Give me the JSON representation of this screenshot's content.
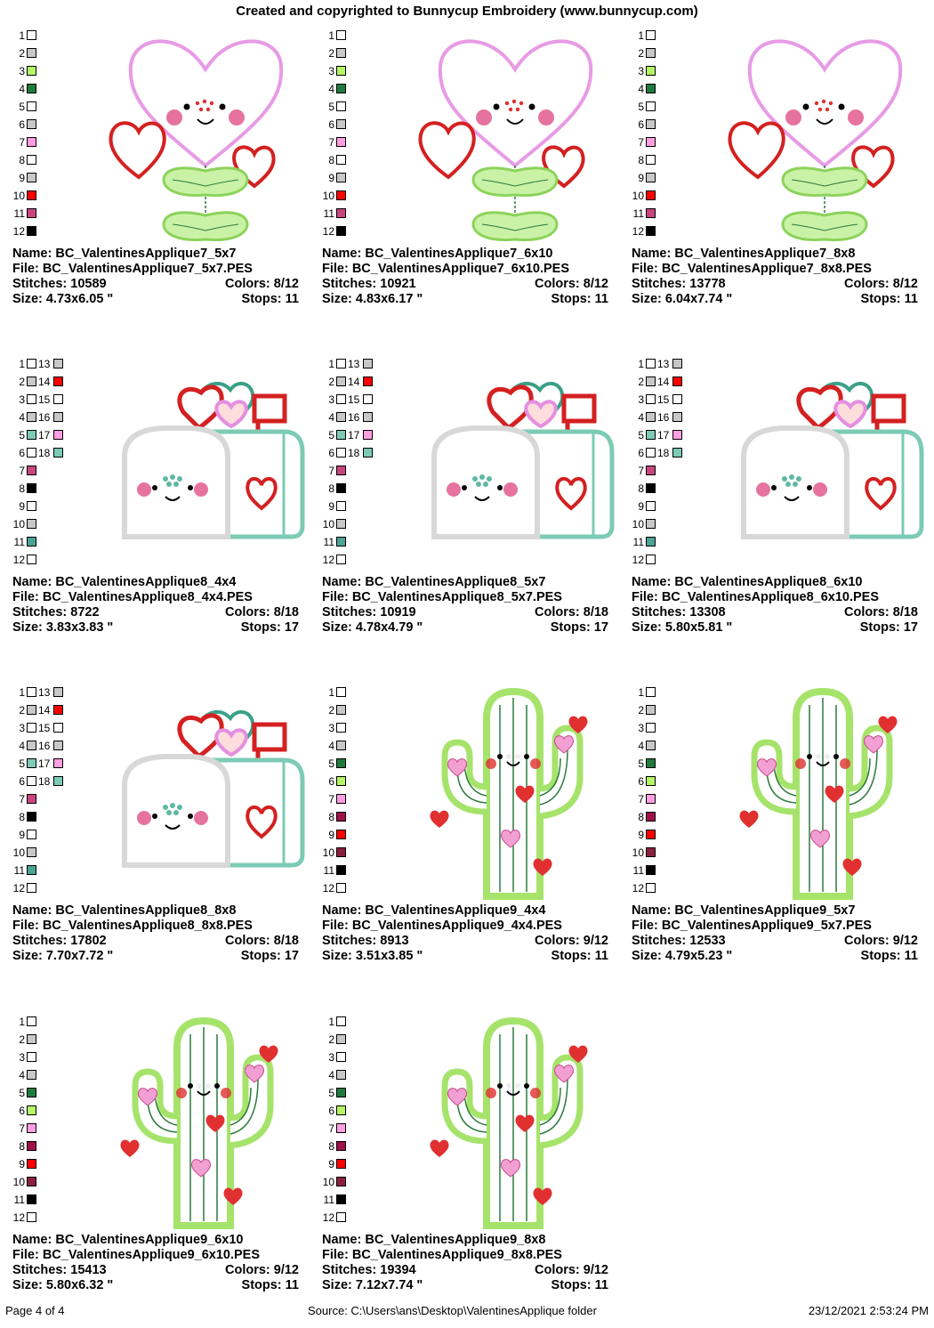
{
  "header": "Created and copyrighted to Bunnycup Embroidery (www.bunnycup.com)",
  "labels": {
    "name": "Name:",
    "file": "File:",
    "stitches": "Stitches:",
    "colors": "Colors:",
    "size": "Size:",
    "stops": "Stops:"
  },
  "palettes": {
    "heart": [
      "#ffffff",
      "#c8c8c8",
      "#b5f566",
      "#1e7a3e",
      "#ffffff",
      "#c8c8c8",
      "#ff9ee0",
      "#ffffff",
      "#c8c8c8",
      "#ff0000",
      "#c8457f",
      "#000000"
    ],
    "mailbox": [
      "#ffffff",
      "#c8c8c8",
      "#ffffff",
      "#c8c8c8",
      "#7ccbb4",
      "#ffffff",
      "#c8457f",
      "#000000",
      "#ffffff",
      "#c8c8c8",
      "#4aa394",
      "#ffffff"
    ],
    "mailbox2": [
      "#c8c8c8",
      "#ff0000",
      "#ffffff",
      "#c8c8c8",
      "#ff9ee0",
      "#7ccbb4"
    ],
    "cactus": [
      "#ffffff",
      "#c8c8c8",
      "#ffffff",
      "#c8c8c8",
      "#1e7a3e",
      "#b5f566",
      "#ff9ee0",
      "#a0104a",
      "#ff0000",
      "#8a2040",
      "#000000",
      "#ffffff"
    ]
  },
  "designs": [
    {
      "motif": "heart",
      "name": "BC_ValentinesApplique7_5x7",
      "file": "BC_ValentinesApplique7_5x7.PES",
      "stitches": "10589",
      "colors": "8/12",
      "size": "4.73x6.05 \"",
      "stops": "11"
    },
    {
      "motif": "heart",
      "name": "BC_ValentinesApplique7_6x10",
      "file": "BC_ValentinesApplique7_6x10.PES",
      "stitches": "10921",
      "colors": "8/12",
      "size": "4.83x6.17 \"",
      "stops": "11"
    },
    {
      "motif": "heart",
      "name": "BC_ValentinesApplique7_8x8",
      "file": "BC_ValentinesApplique7_8x8.PES",
      "stitches": "13778",
      "colors": "8/12",
      "size": "6.04x7.74 \"",
      "stops": "11"
    },
    {
      "motif": "mailbox",
      "name": "BC_ValentinesApplique8_4x4",
      "file": "BC_ValentinesApplique8_4x4.PES",
      "stitches": "8722",
      "colors": "8/18",
      "size": "3.83x3.83 \"",
      "stops": "17"
    },
    {
      "motif": "mailbox",
      "name": "BC_ValentinesApplique8_5x7",
      "file": "BC_ValentinesApplique8_5x7.PES",
      "stitches": "10919",
      "colors": "8/18",
      "size": "4.78x4.79 \"",
      "stops": "17"
    },
    {
      "motif": "mailbox",
      "name": "BC_ValentinesApplique8_6x10",
      "file": "BC_ValentinesApplique8_6x10.PES",
      "stitches": "13308",
      "colors": "8/18",
      "size": "5.80x5.81 \"",
      "stops": "17"
    },
    {
      "motif": "mailbox",
      "name": "BC_ValentinesApplique8_8x8",
      "file": "BC_ValentinesApplique8_8x8.PES",
      "stitches": "17802",
      "colors": "8/18",
      "size": "7.70x7.72 \"",
      "stops": "17"
    },
    {
      "motif": "cactus",
      "name": "BC_ValentinesApplique9_4x4",
      "file": "BC_ValentinesApplique9_4x4.PES",
      "stitches": "8913",
      "colors": "9/12",
      "size": "3.51x3.85 \"",
      "stops": "11"
    },
    {
      "motif": "cactus",
      "name": "BC_ValentinesApplique9_5x7",
      "file": "BC_ValentinesApplique9_5x7.PES",
      "stitches": "12533",
      "colors": "9/12",
      "size": "4.79x5.23 \"",
      "stops": "11"
    },
    {
      "motif": "cactus",
      "name": "BC_ValentinesApplique9_6x10",
      "file": "BC_ValentinesApplique9_6x10.PES",
      "stitches": "15413",
      "colors": "9/12",
      "size": "5.80x6.32 \"",
      "stops": "11"
    },
    {
      "motif": "cactus",
      "name": "BC_ValentinesApplique9_8x8",
      "file": "BC_ValentinesApplique9_8x8.PES",
      "stitches": "19394",
      "colors": "9/12",
      "size": "7.12x7.74 \"",
      "stops": "11"
    }
  ],
  "footer": {
    "page": "Page 4 of 4",
    "source": "Source: C:\\Users\\ans\\Desktop\\ValentinesApplique folder",
    "timestamp": "23/12/2021 2:53:24 PM"
  }
}
